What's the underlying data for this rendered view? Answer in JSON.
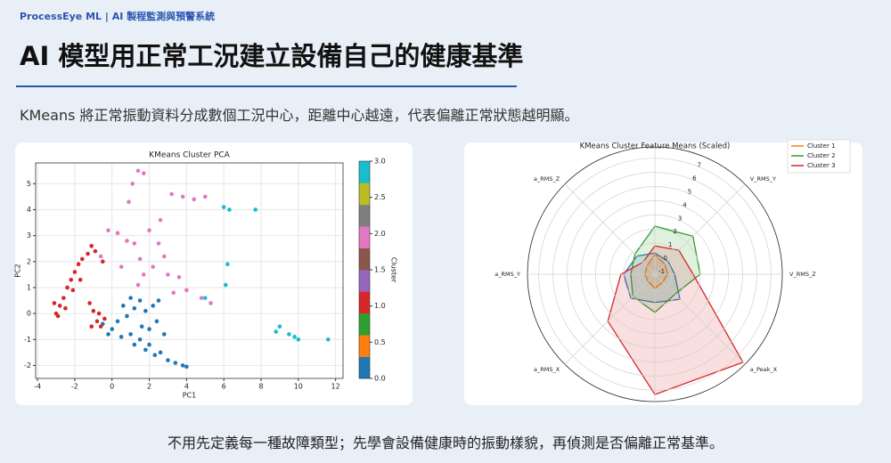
{
  "header": {
    "brand": "ProcessEye ML | AI 製程監測與預警系統",
    "title": "AI 模型用正常工況建立設備自己的健康基準",
    "subtitle": "KMeans 將正常振動資料分成數個工況中心，距離中心越遠，代表偏離正常狀態越明顯。"
  },
  "footer": "不用先定義每一種故障類型；先學會設備健康時的振動樣貌，再偵測是否偏離正常基準。",
  "chart_data": [
    {
      "type": "scatter",
      "title": "KMeans Cluster PCA",
      "x_label": "PC1",
      "y_label": "PC2",
      "grid": true,
      "xlim": [
        -4.1,
        12.4
      ],
      "xticks": [
        -4,
        -2,
        0,
        2,
        4,
        6,
        8,
        10,
        12
      ],
      "ylim": [
        -2.5,
        5.8
      ],
      "yticks": [
        -2,
        -1,
        0,
        1,
        2,
        3,
        4,
        5
      ],
      "series": [
        {
          "color": "#1f77b4",
          "x": [
            -0.5,
            0,
            0.3,
            0.5,
            1,
            1.2,
            1.5,
            1.8,
            2,
            2.3,
            2.6,
            3,
            3.4,
            3.8,
            4,
            0.8,
            1.2,
            1.5,
            1.8,
            2.2,
            2.5,
            2.4,
            1.6,
            0.6,
            -0.2,
            1.0,
            2.8,
            2.0
          ],
          "values": [
            -0.4,
            -0.6,
            -0.3,
            -0.9,
            -0.8,
            -1.2,
            -1,
            -1.4,
            -1.2,
            -1.6,
            -1.5,
            -1.8,
            -1.9,
            -2,
            -2.05,
            -0.1,
            0.2,
            0.5,
            0.1,
            0.3,
            0.5,
            -0.3,
            -0.5,
            0.3,
            -0.8,
            0.6,
            -0.8,
            -0.6
          ]
        },
        {
          "color": "#d62728",
          "x": [
            -3,
            -2.8,
            -2.6,
            -2.4,
            -2.2,
            -2,
            -1.8,
            -1.6,
            -1.3,
            -1.1,
            -0.9,
            -2.9,
            -2.5,
            -2.1,
            -1.7,
            -1.2,
            -1,
            -0.8,
            -0.6,
            -1.1,
            -0.7,
            -0.4,
            -0.5,
            -3.1
          ],
          "values": [
            0,
            0.3,
            0.6,
            1,
            1.3,
            1.6,
            1.9,
            2.1,
            2.3,
            2.6,
            2.4,
            -0.1,
            0.2,
            0.9,
            1.3,
            0.4,
            0.1,
            -0.3,
            -0.5,
            -0.5,
            0,
            -0.2,
            2,
            0.4
          ]
        },
        {
          "color": "#e377c2",
          "x": [
            1.4,
            1.7,
            1.1,
            3.2,
            3.8,
            4.4,
            5,
            0.9,
            -0.2,
            0.3,
            0.8,
            1.2,
            2,
            2.5,
            2.8,
            3,
            2.2,
            1.7,
            1.4,
            3.6,
            4,
            4.8,
            5.3,
            0.5,
            -0.6,
            2.6,
            1.5,
            3.3
          ],
          "values": [
            5.5,
            5.4,
            5,
            4.6,
            4.5,
            4.4,
            4.5,
            4.3,
            3.2,
            3.1,
            2.8,
            2.7,
            3.2,
            2.7,
            2.2,
            1.5,
            1.8,
            1.5,
            1.1,
            1.4,
            0.9,
            0.6,
            0.4,
            1.8,
            2.2,
            3.6,
            2.1,
            0.8
          ]
        },
        {
          "color": "#17becf",
          "x": [
            6,
            6.3,
            7.7,
            6.2,
            6.1,
            5,
            9,
            9.5,
            10,
            11.6,
            8.8,
            9.8
          ],
          "values": [
            4.1,
            4,
            4,
            1.9,
            1.1,
            0.6,
            -0.5,
            -0.8,
            -1,
            -1,
            -0.7,
            -0.9
          ]
        }
      ],
      "colorbar": {
        "label": "Cluster",
        "lim": [
          0,
          3
        ],
        "ticks": [
          {
            "value": 0,
            "label": "0.0"
          },
          {
            "value": 0.5,
            "label": "0.5"
          },
          {
            "value": 1,
            "label": "1.0"
          },
          {
            "value": 1.5,
            "label": "1.5"
          },
          {
            "value": 2,
            "label": "2.0"
          },
          {
            "value": 2.5,
            "label": "2.5"
          },
          {
            "value": 3,
            "label": "3.0"
          }
        ],
        "colors": [
          "#1f77b4",
          "#ff7f0e",
          "#2ca02c",
          "#d62728",
          "#9467bd",
          "#8c564b",
          "#e377c2",
          "#7f7f7f",
          "#bcbd22",
          "#17becf"
        ]
      }
    },
    {
      "type": "radar",
      "title": "KMeans Cluster Feature Means (Scaled)",
      "categories": [
        "V_RMS_Z",
        "V_RMS_Y",
        null,
        "a_RMS_Z",
        "a_RMS_Y",
        "a_RMS_X",
        null,
        "a_Peak_X"
      ],
      "rlim": [
        -1.2,
        7.8
      ],
      "rticks": [
        -1,
        0,
        1,
        2,
        3,
        4,
        5,
        6,
        7
      ],
      "legend": "upper-right",
      "series": [
        {
          "color": "#1f77b4",
          "values": [
            0.2,
            0.1,
            0.3,
            0.6,
            1.0,
            1.2,
            0.8,
            1.3
          ]
        },
        {
          "name": "Cluster 1",
          "color": "#ff7f0e",
          "values": [
            -0.3,
            -0.2,
            0.2,
            -0.4,
            -0.5,
            -0.5,
            -0.2,
            -0.4
          ]
        },
        {
          "name": "Cluster 2",
          "color": "#2ca02c",
          "values": [
            2.0,
            2.6,
            2.2,
            0.8,
            0.5,
            1.0,
            1.5,
            0.8
          ]
        },
        {
          "name": "Cluster 3",
          "color": "#d62728",
          "values": [
            1.5,
            1.2,
            0.8,
            0.0,
            1.2,
            3.5,
            7.3,
            7.6
          ]
        }
      ]
    }
  ]
}
